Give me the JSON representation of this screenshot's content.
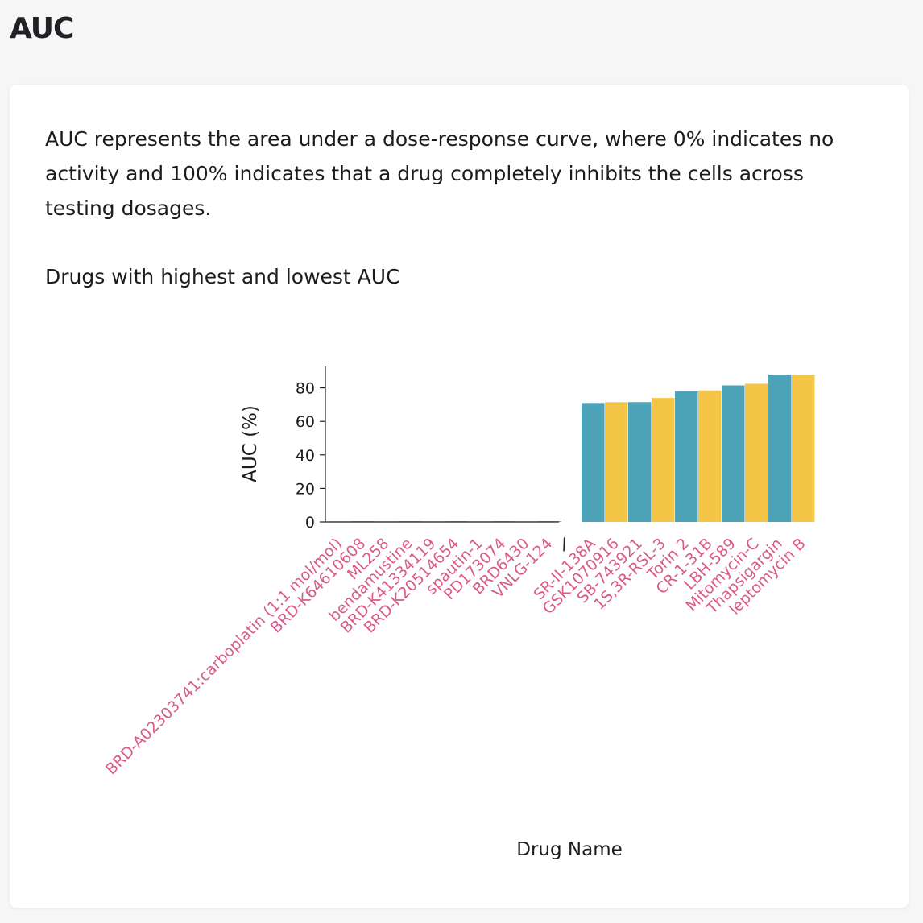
{
  "page": {
    "title": "AUC"
  },
  "card": {
    "description": "AUC represents the area under a dose-response curve, where 0% indicates no activity and 100% indicates that a drug completely inhibits the cells across testing dosages.",
    "chart_title": "Drugs with highest and lowest AUC"
  },
  "colors": {
    "teal": "#4da3b8",
    "yellow": "#f5c548",
    "label_pink": "#d95a8a",
    "axis": "#222222"
  },
  "chart_data": {
    "type": "bar",
    "title": "Drugs with highest and lowest AUC",
    "xlabel": "Drug Name",
    "ylabel": "AUC (%)",
    "ylim": [
      0,
      92
    ],
    "yticks": [
      0,
      20,
      40,
      60,
      80
    ],
    "grid": false,
    "legend": "none",
    "separator_label": "/",
    "categories": [
      "BRD-A02303741:carboplatin (1:1 mol/mol)",
      "BRD-K64610608",
      "ML258",
      "bendamustine",
      "BRD-K41334119",
      "BRD-K20514654",
      "spautin-1",
      "PD173074",
      "BRD6430",
      "VNLG-124",
      "SR-II-138A",
      "GSK1070916",
      "SB-743921",
      "1S,3R-RSL-3",
      "Torin 2",
      "CR-1-31B",
      "LBH-589",
      "Mitomycin-C",
      "Thapsigargin",
      "leptomycin B"
    ],
    "values": [
      0,
      0,
      0,
      0,
      0,
      0,
      0,
      0,
      0,
      0,
      71,
      71.5,
      71.5,
      74,
      78,
      78.5,
      81.5,
      82.5,
      88,
      88
    ],
    "bar_colors": [
      "yellow",
      "teal",
      "yellow",
      "teal",
      "yellow",
      "teal",
      "yellow",
      "teal",
      "yellow",
      "teal",
      "teal",
      "yellow",
      "teal",
      "yellow",
      "teal",
      "yellow",
      "teal",
      "yellow",
      "teal",
      "yellow"
    ]
  }
}
